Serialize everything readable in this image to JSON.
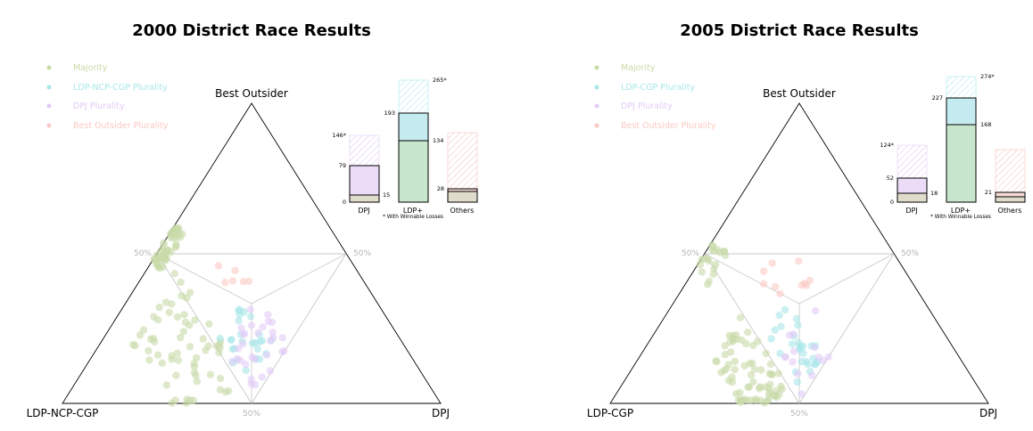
{
  "colors": {
    "majority": "#c8dba8",
    "ldp_plurality": "#a8e6ea",
    "dpj_plurality": "#e2cbf7",
    "outsider_plurality": "#fbc9c4",
    "bar_ldp_main": "#c8e6cc",
    "bar_ldp_top": "#c4ecf0",
    "bar_dpj_main": "#ecdcf8",
    "bar_others_main": "#f6d8d4",
    "bar_base": "#e0dccc",
    "hatch_ldp": "#a8e6ea",
    "hatch_dpj": "#d6bcf4",
    "hatch_others": "#f6bcb8"
  },
  "chart_data": [
    {
      "type": "scatter",
      "subtype": "ternary",
      "title": "2000 District Race Results",
      "vertex_labels": {
        "top": "Best Outsider",
        "left": "LDP-NCP-CGP",
        "right": "DPJ"
      },
      "midpoint_labels": {
        "left": "50%",
        "right": "50%",
        "bottom": "50%"
      },
      "legend": {
        "placement": "top-left",
        "items": [
          "Majority",
          "LDP-NCP-CGP Plurality",
          "DPJ Plurality",
          "Best Outsider Plurality"
        ]
      },
      "clusters": [
        {
          "category": "Majority",
          "count": 62,
          "ldp": [
            0.47,
            0.72
          ],
          "dpj": [
            0.08,
            0.42
          ],
          "gap": 0.03,
          "seed": 11
        },
        {
          "category": "Majority",
          "count": 48,
          "ldp": [
            0.4,
            0.52
          ],
          "dpj": [
            0.0,
            0.04
          ],
          "seed": 13,
          "lower": true
        },
        {
          "category": "LDP-NCP-CGP Plurality",
          "count": 26,
          "ldp": [
            0.34,
            0.5
          ],
          "dpj": [
            0.3,
            0.49
          ],
          "seed": 17
        },
        {
          "category": "DPJ Plurality",
          "count": 30,
          "dpj": [
            0.34,
            0.5
          ],
          "ldp": [
            0.3,
            0.49
          ],
          "seed": 19
        },
        {
          "category": "Best Outsider Plurality",
          "count": 6,
          "top": [
            0.38,
            0.49
          ],
          "ldp": [
            0.26,
            0.38
          ],
          "seed": 23
        }
      ],
      "inset_bars": {
        "categories": [
          "DPJ",
          "LDP+",
          "Others"
        ],
        "won": [
          15,
          134,
          28
        ],
        "plurality_total": [
          79,
          193,
          null
        ],
        "winnable_total": [
          146,
          265,
          0
        ],
        "labels": {
          "DPJ": [
            "146*",
            "79",
            "15",
            "0"
          ],
          "LDP+": [
            "265*",
            "193",
            "134"
          ],
          "Others": [
            "28"
          ]
        },
        "ylim": [
          0,
          265
        ],
        "note": "* With Winnable Losses"
      }
    },
    {
      "type": "scatter",
      "subtype": "ternary",
      "title": "2005 District Race Results",
      "vertex_labels": {
        "top": "Best Outsider",
        "left": "LDP-CGP",
        "right": "DPJ"
      },
      "midpoint_labels": {
        "left": "50%",
        "right": "50%",
        "bottom": "50%"
      },
      "legend": {
        "placement": "top-left",
        "items": [
          "Majority",
          "LDP-CGP Plurality",
          "DPJ Plurality",
          "Best Outsider Plurality"
        ]
      },
      "clusters": [
        {
          "category": "Majority",
          "count": 72,
          "ldp": [
            0.5,
            0.66
          ],
          "dpj": [
            0.2,
            0.44
          ],
          "gap": 0.02,
          "seed": 29
        },
        {
          "category": "Majority",
          "count": 20,
          "ldp": [
            0.44,
            0.55
          ],
          "dpj": [
            0.0,
            0.06
          ],
          "seed": 31,
          "lower": true
        },
        {
          "category": "LDP-CGP Plurality",
          "count": 28,
          "ldp": [
            0.36,
            0.5
          ],
          "dpj": [
            0.3,
            0.48
          ],
          "seed": 37
        },
        {
          "category": "DPJ Plurality",
          "count": 14,
          "dpj": [
            0.36,
            0.5
          ],
          "ldp": [
            0.3,
            0.48
          ],
          "seed": 41
        },
        {
          "category": "Best Outsider Plurality",
          "count": 10,
          "top": [
            0.36,
            0.49
          ],
          "ldp": [
            0.26,
            0.4
          ],
          "seed": 43
        }
      ],
      "inset_bars": {
        "categories": [
          "DPJ",
          "LDP+",
          "Others"
        ],
        "won": [
          18,
          168,
          21
        ],
        "plurality_total": [
          52,
          227,
          null
        ],
        "winnable_total": [
          124,
          274,
          114
        ],
        "labels": {
          "DPJ": [
            "124*",
            "52",
            "18",
            "0"
          ],
          "LDP+": [
            "274*",
            "227",
            "168"
          ],
          "Others": [
            "21"
          ]
        },
        "ylim": [
          0,
          274
        ],
        "note": "* With Winnable Losses"
      }
    }
  ]
}
